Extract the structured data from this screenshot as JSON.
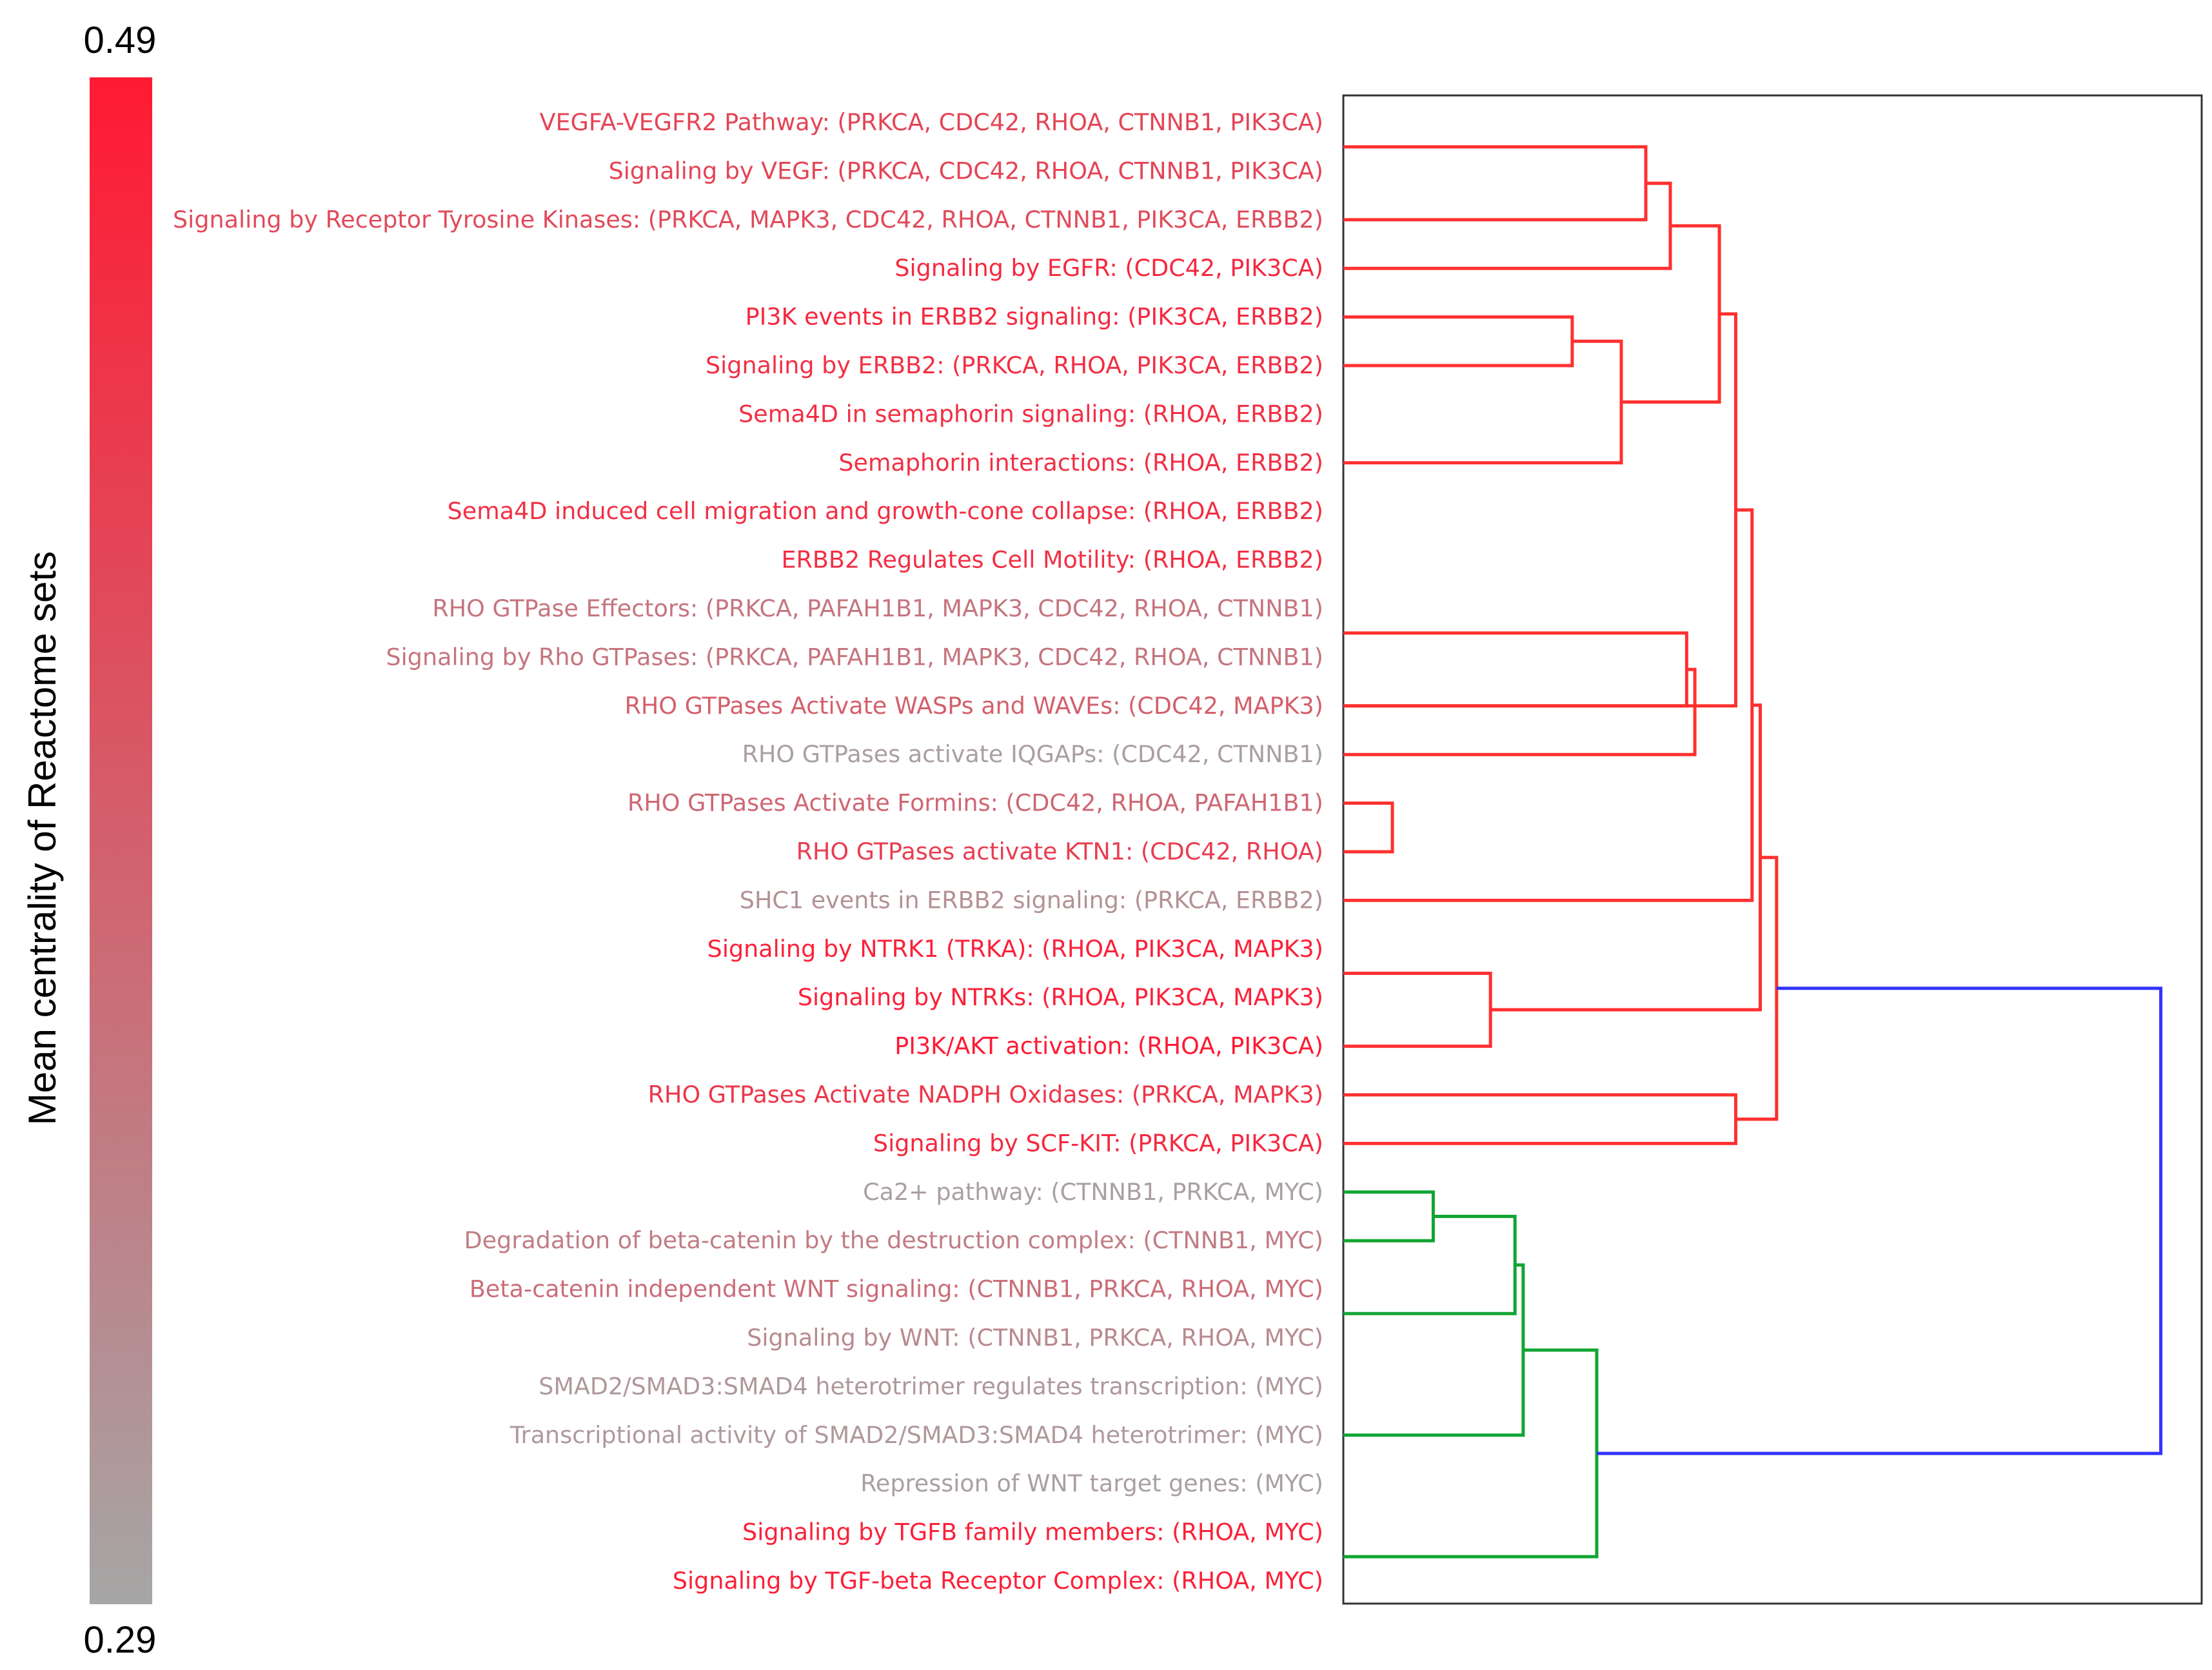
{
  "chart_data": {
    "type": "dendrogram",
    "title": "",
    "colorbar": {
      "label": "Mean centrality of Reactome sets",
      "max_label": "0.49",
      "min_label": "0.29",
      "max": 0.49,
      "min": 0.29,
      "max_color": "#ff1a33",
      "min_color": "#a6a6a6"
    },
    "leaves": [
      {
        "label": "VEGFA-VEGFR2 Pathway: (PRKCA, CDC42, RHOA, CTNNB1, PIK3CA)",
        "centrality": 0.43
      },
      {
        "label": "Signaling by VEGF: (PRKCA, CDC42, RHOA, CTNNB1, PIK3CA)",
        "centrality": 0.43
      },
      {
        "label": "Signaling by Receptor Tyrosine Kinases: (PRKCA, MAPK3, CDC42, RHOA, CTNNB1, PIK3CA, ERBB2)",
        "centrality": 0.42
      },
      {
        "label": "Signaling by EGFR: (CDC42, PIK3CA)",
        "centrality": 0.47
      },
      {
        "label": "PI3K events in ERBB2 signaling: (PIK3CA, ERBB2)",
        "centrality": 0.47
      },
      {
        "label": "Signaling by ERBB2: (PRKCA, RHOA, PIK3CA, ERBB2)",
        "centrality": 0.46
      },
      {
        "label": "Sema4D in semaphorin signaling: (RHOA, ERBB2)",
        "centrality": 0.46
      },
      {
        "label": "Semaphorin interactions: (RHOA, ERBB2)",
        "centrality": 0.46
      },
      {
        "label": "Sema4D induced cell migration and growth-cone collapse: (RHOA, ERBB2)",
        "centrality": 0.46
      },
      {
        "label": "ERBB2 Regulates Cell Motility: (RHOA, ERBB2)",
        "centrality": 0.46
      },
      {
        "label": "RHO GTPase Effectors: (PRKCA, PAFAH1B1, MAPK3, CDC42, RHOA, CTNNB1)",
        "centrality": 0.36
      },
      {
        "label": "Signaling by Rho GTPases: (PRKCA, PAFAH1B1, MAPK3, CDC42, RHOA, CTNNB1)",
        "centrality": 0.36
      },
      {
        "label": "RHO GTPases Activate WASPs and WAVEs: (CDC42, MAPK3)",
        "centrality": 0.39
      },
      {
        "label": "RHO GTPases activate IQGAPs: (CDC42, CTNNB1)",
        "centrality": 0.3
      },
      {
        "label": "RHO GTPases Activate Formins: (CDC42, RHOA, PAFAH1B1)",
        "centrality": 0.38
      },
      {
        "label": "RHO GTPases activate KTN1: (CDC42, RHOA)",
        "centrality": 0.44
      },
      {
        "label": "SHC1 events in ERBB2 signaling: (PRKCA, ERBB2)",
        "centrality": 0.32
      },
      {
        "label": "Signaling by NTRK1 (TRKA): (RHOA, PIK3CA, MAPK3)",
        "centrality": 0.48
      },
      {
        "label": "Signaling by NTRKs: (RHOA, PIK3CA, MAPK3)",
        "centrality": 0.48
      },
      {
        "label": "PI3K/AKT activation: (RHOA, PIK3CA)",
        "centrality": 0.49
      },
      {
        "label": "RHO GTPases Activate NADPH Oxidases: (PRKCA, MAPK3)",
        "centrality": 0.45
      },
      {
        "label": "Signaling by SCF-KIT: (PRKCA, PIK3CA)",
        "centrality": 0.47
      },
      {
        "label": "Ca2+ pathway: (CTNNB1, PRKCA, MYC)",
        "centrality": 0.3
      },
      {
        "label": "Degradation of beta-catenin by the destruction complex: (CTNNB1, MYC)",
        "centrality": 0.35
      },
      {
        "label": "Beta-catenin independent WNT signaling: (CTNNB1, PRKCA, RHOA, MYC)",
        "centrality": 0.37
      },
      {
        "label": "Signaling by WNT: (CTNNB1, PRKCA, RHOA, MYC)",
        "centrality": 0.33
      },
      {
        "label": "SMAD2/SMAD3:SMAD4 heterotrimer regulates transcription: (MYC)",
        "centrality": 0.31
      },
      {
        "label": "Transcriptional activity of SMAD2/SMAD3:SMAD4 heterotrimer: (MYC)",
        "centrality": 0.31
      },
      {
        "label": "Repression of WNT target genes: (MYC)",
        "centrality": 0.3
      },
      {
        "label": "Signaling by TGFB family members: (RHOA, MYC)",
        "centrality": 0.48
      },
      {
        "label": "Signaling by TGF-beta Receptor Complex: (RHOA, MYC)",
        "centrality": 0.48
      }
    ],
    "links": [
      {
        "left": [
          0,
          1
        ],
        "right": [
          2
        ],
        "height": 0.37,
        "color": "#ff3030"
      },
      {
        "left": [
          0,
          1,
          2
        ],
        "right": [
          3
        ],
        "height": 0.4,
        "color": "#ff3030"
      },
      {
        "left": [
          4
        ],
        "right": [
          5
        ],
        "height": 0.28,
        "color": "#ff3030"
      },
      {
        "left": [
          4,
          5
        ],
        "right": [
          6,
          7,
          8
        ],
        "height": 0.34,
        "color": "#ff3030"
      },
      {
        "left": [
          0,
          1,
          2,
          3
        ],
        "right": [
          4,
          5,
          6,
          7,
          8
        ],
        "height": 0.46,
        "color": "#ff3030"
      },
      {
        "left": [
          10,
          11
        ],
        "right": [
          12
        ],
        "height": 0.42,
        "color": "#ff3030"
      },
      {
        "left": [
          10,
          11,
          12
        ],
        "right": [
          13
        ],
        "height": 0.43,
        "color": "#ff3030"
      },
      {
        "left": [
          14
        ],
        "right": [
          15
        ],
        "height": 0.06,
        "color": "#ff3030"
      },
      {
        "left": [
          0,
          1,
          2,
          3,
          4,
          5,
          6,
          7,
          8
        ],
        "right": [
          9,
          10,
          11,
          12,
          13,
          14,
          15
        ],
        "height": 0.48,
        "color": "#ff3030"
      },
      {
        "left": [
          0,
          1,
          2,
          3,
          4,
          5,
          6,
          7,
          8,
          9,
          10,
          11,
          12,
          13,
          14,
          15
        ],
        "right": [
          16
        ],
        "height": 0.5,
        "color": "#ff3030"
      },
      {
        "left": [
          17,
          18
        ],
        "right": [
          19
        ],
        "height": 0.18,
        "color": "#ff3030"
      },
      {
        "left": [
          0,
          1,
          2,
          3,
          4,
          5,
          6,
          7,
          8,
          9,
          10,
          11,
          12,
          13,
          14,
          15,
          16
        ],
        "right": [
          17,
          18,
          19
        ],
        "height": 0.51,
        "color": "#ff3030"
      },
      {
        "left": [
          20
        ],
        "right": [
          21
        ],
        "height": 0.48,
        "color": "#ff3030"
      },
      {
        "left": [
          0,
          1,
          2,
          3,
          4,
          5,
          6,
          7,
          8,
          9,
          10,
          11,
          12,
          13,
          14,
          15,
          16,
          17,
          18,
          19
        ],
        "right": [
          20,
          21
        ],
        "height": 0.53,
        "color": "#ff3030"
      },
      {
        "left": [
          22
        ],
        "right": [
          23
        ],
        "height": 0.11,
        "color": "#12a534"
      },
      {
        "left": [
          22,
          23
        ],
        "right": [
          24,
          25
        ],
        "height": 0.21,
        "color": "#12a534"
      },
      {
        "left": [
          22,
          23,
          24,
          25
        ],
        "right": [
          26,
          27,
          28
        ],
        "height": 0.22,
        "color": "#12a534"
      },
      {
        "left": [
          22,
          23,
          24,
          25,
          26,
          27,
          28
        ],
        "right": [
          29,
          30
        ],
        "height": 0.31,
        "color": "#12a534"
      },
      {
        "left": [
          0,
          1,
          2,
          3,
          4,
          5,
          6,
          7,
          8,
          9,
          10,
          11,
          12,
          13,
          14,
          15,
          16,
          17,
          18,
          19,
          20,
          21
        ],
        "right": [
          22,
          23,
          24,
          25,
          26,
          27,
          28,
          29,
          30
        ],
        "height": 1.0,
        "color": "#3333ff"
      }
    ],
    "height_range": [
      0,
      1.05
    ],
    "orientation": "left",
    "grid": false
  }
}
